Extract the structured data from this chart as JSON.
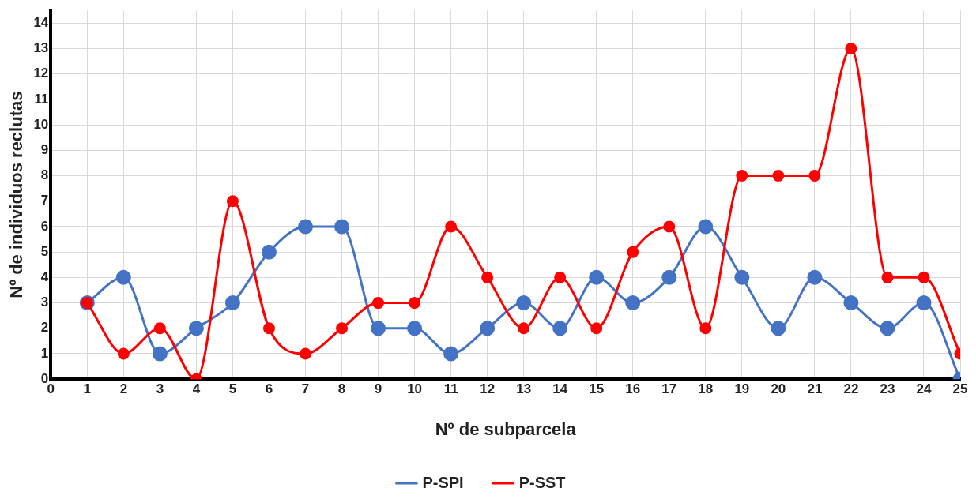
{
  "chart_data": {
    "type": "line",
    "xlabel": "Nº de subparcela",
    "ylabel": "Nº de individuos reclutas",
    "x": [
      1,
      2,
      3,
      4,
      5,
      6,
      7,
      8,
      9,
      10,
      11,
      12,
      13,
      14,
      15,
      16,
      17,
      18,
      19,
      20,
      21,
      22,
      23,
      24,
      25
    ],
    "series": [
      {
        "name": "P-SPI",
        "color": "#4472c4",
        "values": [
          3,
          4,
          1,
          2,
          3,
          5,
          6,
          6,
          2,
          2,
          1,
          2,
          3,
          2,
          4,
          3,
          4,
          6,
          4,
          2,
          4,
          3,
          2,
          3,
          0
        ]
      },
      {
        "name": "P-SST",
        "color": "#ff0000",
        "values": [
          3,
          1,
          2,
          0,
          7,
          2,
          1,
          2,
          3,
          3,
          6,
          4,
          2,
          4,
          2,
          5,
          6,
          2,
          8,
          8,
          8,
          13,
          4,
          4,
          1
        ]
      }
    ],
    "xlim": [
      0,
      25
    ],
    "xticks": [
      0,
      1,
      2,
      3,
      4,
      5,
      6,
      7,
      8,
      9,
      10,
      11,
      12,
      13,
      14,
      15,
      16,
      17,
      18,
      19,
      20,
      21,
      22,
      23,
      24,
      25
    ],
    "ylim": [
      0,
      14.5
    ],
    "yticks": [
      0,
      1,
      2,
      3,
      4,
      5,
      6,
      7,
      8,
      9,
      10,
      11,
      12,
      13,
      14
    ],
    "grid": true,
    "legend": "bottom",
    "marker": "circle",
    "line_style": "solid"
  }
}
